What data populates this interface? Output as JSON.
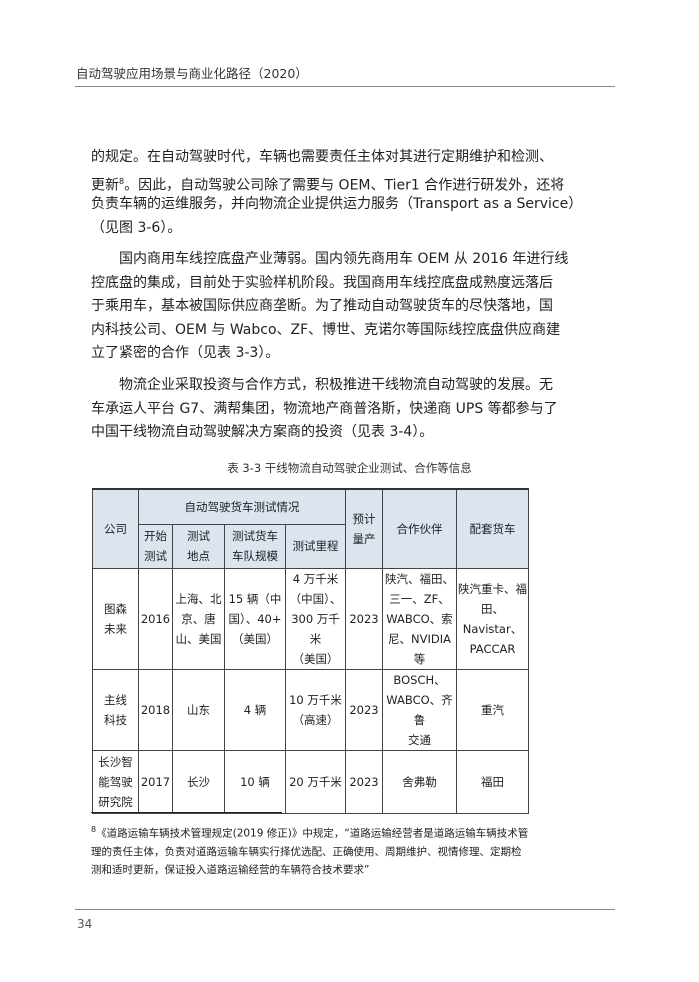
{
  "header": {
    "title": "自动驾驶应用场景与商业化路径（2020）"
  },
  "paragraphs": [
    {
      "lines": [
        "的规定。在自动驾驶时代，车辆也需要责任主体对其进行定期维护和检测、",
        "更新",
        "。因此，自动驾驶公司除了需要与 OEM、Tier1 合作进行研发外，还将",
        "负责车辆的运维服务，并向物流企业提供运力服务（Transport as a Service）",
        "（见图 3-6）。"
      ],
      "footnote_ref": "8"
    },
    {
      "lines": [
        "国内商用车线控底盘产业薄弱。国内领先商用车 OEM 从 2016 年进行线",
        "控底盘的集成，目前处于实验样机阶段。我国商用车线控底盘成熟度远落后",
        "于乘用车，基本被国际供应商垄断。为了推动自动驾驶货车的尽快落地，国",
        "内科技公司、OEM 与 Wabco、ZF、博世、克诺尔等国际线控底盘供应商建",
        "立了紧密的合作（见表 3-3）。"
      ]
    },
    {
      "lines": [
        "物流企业采取投资与合作方式，积极推进干线物流自动驾驶的发展。无",
        "车承运人平台 G7、满帮集团，物流地产商普洛斯，快递商 UPS 等都参与了",
        "中国干线物流自动驾驶解决方案商的投资（见表 3-4）。"
      ]
    }
  ],
  "table": {
    "caption": "表 3-3  干线物流自动驾驶企业测试、合作等信息",
    "group_header": "自动驾驶货车测试情况",
    "headers": {
      "company": "公司",
      "start": "开始\n测试",
      "location": "测试\n地点",
      "fleet": "测试货车\n车队规模",
      "mileage": "测试里程",
      "mass": "预计\n量产",
      "partners": "合作伙伴",
      "trucks": "配套货车"
    },
    "rows": [
      [
        "图森\n未来",
        "2016",
        "上海、北\n京、唐\n山、美国",
        "15 辆（中\n国）、40+\n（美国）",
        "4 万千米\n（中国）、\n300 万千米\n（美国）",
        "2023",
        "陕汽、福田、\n三一、ZF、\nWABCO、索\n尼、NVIDIA 等",
        "陕汽重卡、福\n田、Navistar、\nPACCAR"
      ],
      [
        "主线\n科技",
        "2018",
        "山东",
        "4 辆",
        "10 万千米\n（高速）",
        "2023",
        "BOSCH、\nWABCO、齐鲁\n交通",
        "重汽"
      ],
      [
        "长沙智\n能驾驶\n研究院",
        "2017",
        "长沙",
        "10 辆",
        "20 万千米",
        "2023",
        "舍弗勒",
        "福田"
      ]
    ]
  },
  "footnote": {
    "mark": "8",
    "lines": [
      "《道路运输车辆技术管理规定(2019 修正)》中规定，“道路运输经营者是道路运输车辆技术管",
      "理的责任主体，负责对道路运输车辆实行择优选配、正确使用、周期维护、视情修理、定期检",
      "测和适时更新，保证投入道路运输经营的车辆符合技术要求”"
    ]
  },
  "page_number": "34",
  "colors": {
    "table_header": "#dbe4ef"
  }
}
